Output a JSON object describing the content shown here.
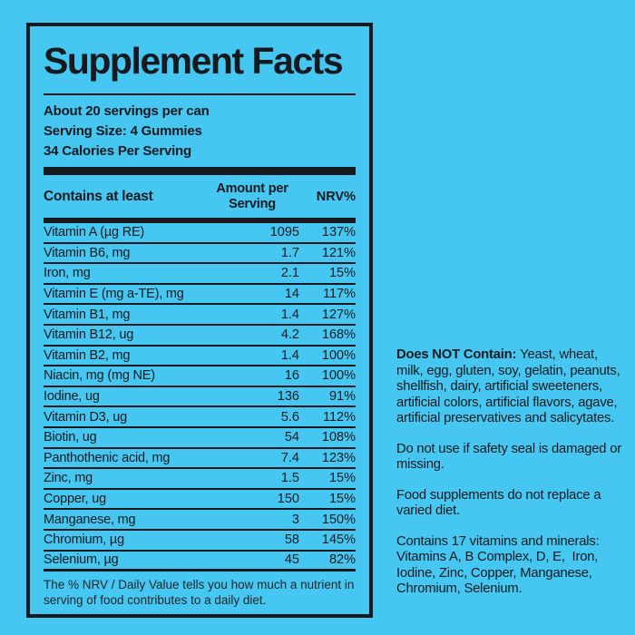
{
  "colors": {
    "background": "#45c7f2",
    "ink": "#16191d"
  },
  "label": {
    "title": "Supplement Facts",
    "servings_line": "About 20 servings per can",
    "serving_size_line": "Serving Size: 4 Gummies",
    "calories_line": "34 Calories Per Serving",
    "table": {
      "col_nutrient": "Contains at least",
      "col_amount": "Amount per Serving",
      "col_nrv": "NRV%",
      "rows": [
        {
          "name": "Vitamin A (µg RE)",
          "amount": "1095",
          "nrv": "137%"
        },
        {
          "name": "Vitamin B6, mg",
          "amount": "1.7",
          "nrv": "121%"
        },
        {
          "name": "Iron, mg",
          "amount": "2.1",
          "nrv": "15%"
        },
        {
          "name": "Vitamin E (mg a-TE), mg",
          "amount": "14",
          "nrv": "117%"
        },
        {
          "name": "Vitamin B1, mg",
          "amount": "1.4",
          "nrv": "127%"
        },
        {
          "name": "Vitamin B12, ug",
          "amount": "4.2",
          "nrv": "168%"
        },
        {
          "name": "Vitamin B2, mg",
          "amount": "1.4",
          "nrv": "100%"
        },
        {
          "name": "Niacin, mg (mg NE)",
          "amount": "16",
          "nrv": "100%"
        },
        {
          "name": "Iodine, ug",
          "amount": "136",
          "nrv": "91%"
        },
        {
          "name": "Vitamin D3, ug",
          "amount": "5.6",
          "nrv": "112%"
        },
        {
          "name": "Biotin, ug",
          "amount": "54",
          "nrv": "108%"
        },
        {
          "name": "Panthothenic acid, mg",
          "amount": "7.4",
          "nrv": "123%"
        },
        {
          "name": "Zinc, mg",
          "amount": "1.5",
          "nrv": "15%"
        },
        {
          "name": "Copper, ug",
          "amount": "150",
          "nrv": "15%"
        },
        {
          "name": "Manganese, mg",
          "amount": "3",
          "nrv": "150%"
        },
        {
          "name": "Chromium, µg",
          "amount": "58",
          "nrv": "145%"
        },
        {
          "name": "Selenium, µg",
          "amount": "45",
          "nrv": "82%"
        }
      ]
    },
    "footnote": "The % NRV / Daily Value tells you how much a nutrient in  serving of food contributes to a daily diet."
  },
  "side_notes": {
    "does_not_contain_intro": "Does NOT Contain: ",
    "does_not_contain_body": "Yeast, wheat, milk, egg, gluten, soy, gelatin, peanuts, shellfish, dairy, artificial sweeteners, artificial colors, artificial flavors, agave, artificial preservatives and salicytates.",
    "safety_seal": "Do not use if safety seal is damaged or missing.",
    "varied_diet": "Food supplements do not replace a varied diet.",
    "contains_intro": "Contains 17 vitamins and minerals:",
    "contains_list": "Vitamins A, B Complex, D, E,  Iron, Iodine, Zinc, Copper, Manganese, Chromium, Selenium."
  }
}
